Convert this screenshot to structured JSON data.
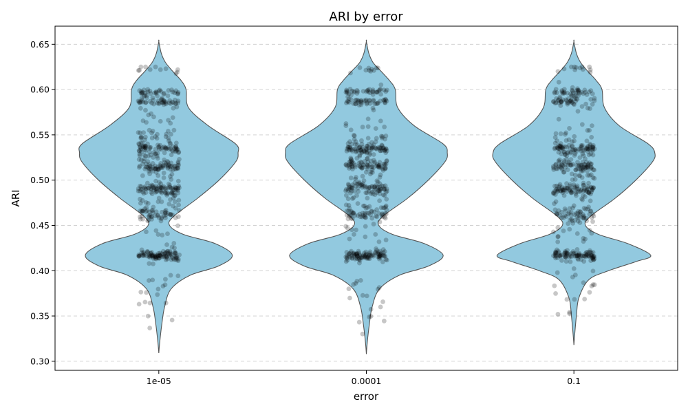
{
  "chart_data": {
    "type": "violin",
    "title": "ARI by error",
    "xlabel": "error",
    "ylabel": "ARI",
    "categories": [
      "1e-05",
      "0.0001",
      "0.1"
    ],
    "ylim": [
      0.29,
      0.67
    ],
    "yticks": [
      0.3,
      0.35,
      0.4,
      0.45,
      0.5,
      0.55,
      0.6,
      0.65
    ],
    "ytick_labels": [
      "0.30",
      "0.35",
      "0.40",
      "0.45",
      "0.50",
      "0.55",
      "0.60",
      "0.65"
    ],
    "grid": "horizontal dashed",
    "colors": {
      "violin_fill": "#92c9df",
      "violin_edge": "#555555",
      "points": "#000000",
      "grid": "#cccccc"
    },
    "series": [
      {
        "category": "1e-05",
        "min": 0.309,
        "max": 0.653,
        "density": [
          [
            0.309,
            0.0
          ],
          [
            0.32,
            0.01
          ],
          [
            0.34,
            0.035
          ],
          [
            0.36,
            0.07
          ],
          [
            0.38,
            0.15
          ],
          [
            0.395,
            0.38
          ],
          [
            0.405,
            0.72
          ],
          [
            0.417,
            0.89
          ],
          [
            0.43,
            0.68
          ],
          [
            0.44,
            0.3
          ],
          [
            0.45,
            0.13
          ],
          [
            0.46,
            0.18
          ],
          [
            0.48,
            0.47
          ],
          [
            0.5,
            0.73
          ],
          [
            0.52,
            0.93
          ],
          [
            0.53,
            0.96
          ],
          [
            0.54,
            0.93
          ],
          [
            0.56,
            0.6
          ],
          [
            0.58,
            0.36
          ],
          [
            0.6,
            0.33
          ],
          [
            0.61,
            0.27
          ],
          [
            0.62,
            0.17
          ],
          [
            0.63,
            0.08
          ],
          [
            0.64,
            0.03
          ],
          [
            0.653,
            0.0
          ]
        ],
        "point_bands": [
          {
            "y": 0.417,
            "n": 90,
            "spread": 0.003
          },
          {
            "y": 0.462,
            "n": 40,
            "spread": 0.004
          },
          {
            "y": 0.49,
            "n": 55,
            "spread": 0.003
          },
          {
            "y": 0.515,
            "n": 60,
            "spread": 0.003
          },
          {
            "y": 0.535,
            "n": 60,
            "spread": 0.003
          },
          {
            "y": 0.587,
            "n": 40,
            "spread": 0.002
          },
          {
            "y": 0.597,
            "n": 35,
            "spread": 0.002
          },
          {
            "y": 0.622,
            "n": 10,
            "spread": 0.002
          },
          {
            "y": 0.5,
            "n": 140,
            "spread": 0.045
          },
          {
            "y": 0.375,
            "n": 18,
            "spread": 0.02
          }
        ]
      },
      {
        "category": "0.0001",
        "min": 0.308,
        "max": 0.653,
        "density": [
          [
            0.308,
            0.0
          ],
          [
            0.32,
            0.01
          ],
          [
            0.34,
            0.035
          ],
          [
            0.36,
            0.07
          ],
          [
            0.38,
            0.16
          ],
          [
            0.395,
            0.4
          ],
          [
            0.405,
            0.75
          ],
          [
            0.417,
            0.93
          ],
          [
            0.43,
            0.7
          ],
          [
            0.44,
            0.32
          ],
          [
            0.45,
            0.15
          ],
          [
            0.46,
            0.2
          ],
          [
            0.48,
            0.5
          ],
          [
            0.5,
            0.75
          ],
          [
            0.52,
            0.95
          ],
          [
            0.53,
            0.98
          ],
          [
            0.54,
            0.93
          ],
          [
            0.56,
            0.58
          ],
          [
            0.58,
            0.38
          ],
          [
            0.6,
            0.35
          ],
          [
            0.61,
            0.28
          ],
          [
            0.62,
            0.18
          ],
          [
            0.63,
            0.08
          ],
          [
            0.64,
            0.03
          ],
          [
            0.653,
            0.0
          ]
        ],
        "point_bands": [
          {
            "y": 0.417,
            "n": 90,
            "spread": 0.003
          },
          {
            "y": 0.462,
            "n": 40,
            "spread": 0.004
          },
          {
            "y": 0.49,
            "n": 55,
            "spread": 0.003
          },
          {
            "y": 0.515,
            "n": 60,
            "spread": 0.003
          },
          {
            "y": 0.535,
            "n": 60,
            "spread": 0.003
          },
          {
            "y": 0.587,
            "n": 40,
            "spread": 0.002
          },
          {
            "y": 0.597,
            "n": 35,
            "spread": 0.002
          },
          {
            "y": 0.622,
            "n": 10,
            "spread": 0.002
          },
          {
            "y": 0.5,
            "n": 140,
            "spread": 0.045
          },
          {
            "y": 0.375,
            "n": 18,
            "spread": 0.02
          }
        ]
      },
      {
        "category": "0.1",
        "min": 0.318,
        "max": 0.653,
        "density": [
          [
            0.318,
            0.0
          ],
          [
            0.33,
            0.01
          ],
          [
            0.35,
            0.03
          ],
          [
            0.37,
            0.06
          ],
          [
            0.39,
            0.18
          ],
          [
            0.4,
            0.42
          ],
          [
            0.41,
            0.75
          ],
          [
            0.417,
            0.93
          ],
          [
            0.43,
            0.65
          ],
          [
            0.44,
            0.3
          ],
          [
            0.45,
            0.14
          ],
          [
            0.46,
            0.2
          ],
          [
            0.48,
            0.5
          ],
          [
            0.5,
            0.75
          ],
          [
            0.52,
            0.95
          ],
          [
            0.53,
            0.98
          ],
          [
            0.54,
            0.9
          ],
          [
            0.56,
            0.55
          ],
          [
            0.58,
            0.37
          ],
          [
            0.6,
            0.34
          ],
          [
            0.61,
            0.27
          ],
          [
            0.62,
            0.17
          ],
          [
            0.63,
            0.08
          ],
          [
            0.64,
            0.03
          ],
          [
            0.653,
            0.0
          ]
        ],
        "point_bands": [
          {
            "y": 0.417,
            "n": 90,
            "spread": 0.003
          },
          {
            "y": 0.462,
            "n": 40,
            "spread": 0.004
          },
          {
            "y": 0.49,
            "n": 55,
            "spread": 0.003
          },
          {
            "y": 0.515,
            "n": 60,
            "spread": 0.003
          },
          {
            "y": 0.535,
            "n": 60,
            "spread": 0.003
          },
          {
            "y": 0.587,
            "n": 40,
            "spread": 0.002
          },
          {
            "y": 0.597,
            "n": 35,
            "spread": 0.002
          },
          {
            "y": 0.622,
            "n": 10,
            "spread": 0.002
          },
          {
            "y": 0.5,
            "n": 140,
            "spread": 0.045
          },
          {
            "y": 0.375,
            "n": 14,
            "spread": 0.02
          }
        ]
      }
    ]
  }
}
